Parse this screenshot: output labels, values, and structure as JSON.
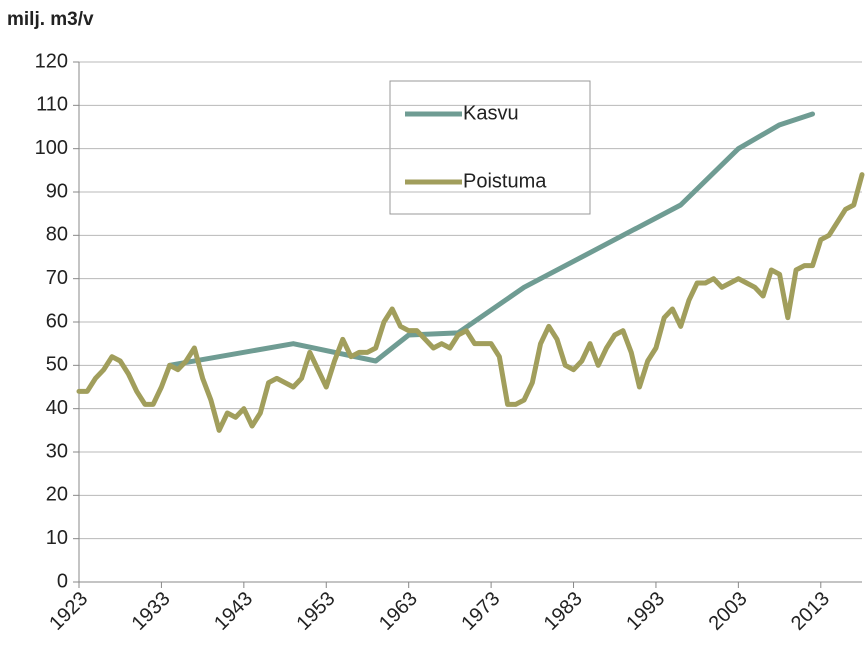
{
  "chart_data": {
    "type": "line",
    "ylabel": "milj. m3/v",
    "xlim": [
      1923,
      2018
    ],
    "xticks": [
      1923,
      1933,
      1943,
      1953,
      1963,
      1973,
      1983,
      1993,
      2003,
      2013
    ],
    "ylim": [
      0,
      120
    ],
    "yticks": [
      0,
      10,
      20,
      30,
      40,
      50,
      60,
      70,
      80,
      90,
      100,
      110,
      120
    ],
    "grid": true,
    "legend": "top",
    "series": [
      {
        "name": "Kasvu",
        "color": "#6f9c93",
        "x": [
          1934,
          1949,
          1959,
          1963,
          1969,
          1977,
          1986,
          1996,
          2003,
          2008,
          2012
        ],
        "values": [
          50,
          55,
          51,
          57,
          57.5,
          68,
          77,
          87,
          100,
          105.5,
          108
        ]
      },
      {
        "name": "Poistuma",
        "color": "#a19e5c",
        "x": [
          1923,
          1924,
          1925,
          1926,
          1927,
          1928,
          1929,
          1930,
          1931,
          1932,
          1933,
          1934,
          1935,
          1936,
          1937,
          1938,
          1939,
          1940,
          1941,
          1942,
          1943,
          1944,
          1945,
          1946,
          1947,
          1948,
          1949,
          1950,
          1951,
          1952,
          1953,
          1954,
          1955,
          1956,
          1957,
          1958,
          1959,
          1960,
          1961,
          1962,
          1963,
          1964,
          1965,
          1966,
          1967,
          1968,
          1969,
          1970,
          1971,
          1972,
          1973,
          1974,
          1975,
          1976,
          1977,
          1978,
          1979,
          1980,
          1981,
          1982,
          1983,
          1984,
          1985,
          1986,
          1987,
          1988,
          1989,
          1990,
          1991,
          1992,
          1993,
          1994,
          1995,
          1996,
          1997,
          1998,
          1999,
          2000,
          2001,
          2002,
          2003,
          2004,
          2005,
          2006,
          2007,
          2008,
          2009,
          2010,
          2011,
          2012,
          2013,
          2014,
          2015,
          2016,
          2017,
          2018
        ],
        "values": [
          44,
          44,
          47,
          49,
          52,
          51,
          48,
          44,
          41,
          41,
          45,
          50,
          49,
          51,
          54,
          47,
          42,
          35,
          39,
          38,
          40,
          36,
          39,
          46,
          47,
          46,
          45,
          47,
          53,
          49,
          45,
          51,
          56,
          52,
          53,
          53,
          54,
          60,
          63,
          59,
          58,
          58,
          56,
          54,
          55,
          54,
          57,
          58,
          55,
          55,
          55,
          52,
          41,
          41,
          42,
          46,
          55,
          59,
          56,
          50,
          49,
          51,
          55,
          50,
          54,
          57,
          58,
          53,
          45,
          51,
          54,
          61,
          63,
          59,
          65,
          69,
          69,
          70,
          68,
          69,
          70,
          69,
          68,
          66,
          72,
          71,
          61,
          72,
          73,
          73,
          79,
          80,
          83,
          86,
          87,
          94
        ]
      }
    ]
  }
}
